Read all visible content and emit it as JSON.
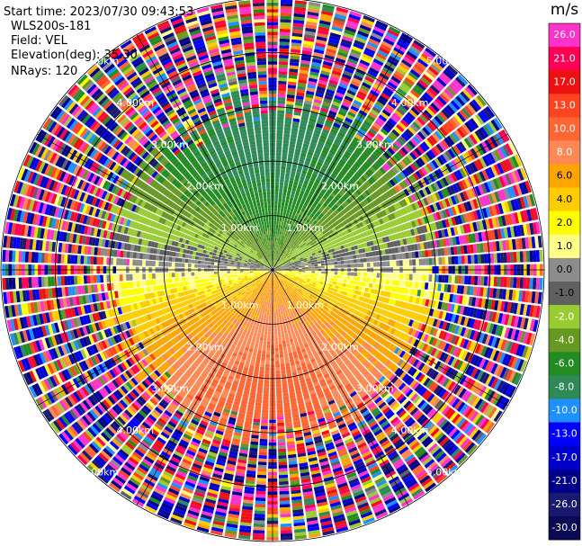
{
  "header": {
    "start_time": "Start time: 2023/07/30 09:43:53",
    "instrument": "WLS200s-181",
    "field": "Field: VEL",
    "elevation": "Elevation(deg): 35.30",
    "nrays": "NRays: 120"
  },
  "chart_data": {
    "type": "heatmap",
    "projection": "polar-ppi",
    "title": "",
    "field": "VEL",
    "elevation_deg": 35.3,
    "nrays": 120,
    "colorbar": {
      "unit": "m/s",
      "ticks": [
        "26.0",
        "21.0",
        "17.0",
        "13.0",
        "10.0",
        "8.0",
        "6.0",
        "4.0",
        "2.0",
        "1.0",
        "0.0",
        "-1.0",
        "-2.0",
        "-4.0",
        "-6.0",
        "-8.0",
        "-10.0",
        "-13.0",
        "-17.0",
        "-21.0",
        "-26.0",
        "-30.0"
      ],
      "colors": [
        "#ff33cc",
        "#ff0055",
        "#ee1111",
        "#ff4422",
        "#ff6633",
        "#ff8855",
        "#ffa500",
        "#ffcc00",
        "#ffff00",
        "#ffff88",
        "#8c8c8c",
        "#606060",
        "#99cc33",
        "#669922",
        "#228b22",
        "#2e8b57",
        "#1e90ff",
        "#0000ff",
        "#0000cd",
        "#00008b",
        "#191970",
        "#0a0a55"
      ]
    },
    "range_rings_km": [
      1.0,
      2.0,
      3.0,
      4.0,
      5.0
    ],
    "range_ring_labels": [
      "1.00km",
      "2.00km",
      "3.00km",
      "4.00km",
      "5.00km"
    ],
    "max_range_km": 5.0,
    "wind_pattern": {
      "inner_km": 3.0,
      "upwind_direction": "north",
      "upwind_values_mps": [
        -10,
        -8,
        -6,
        -4,
        -2
      ],
      "downwind_values_mps": [
        2,
        4,
        6,
        8
      ],
      "outer_noise": true
    }
  }
}
